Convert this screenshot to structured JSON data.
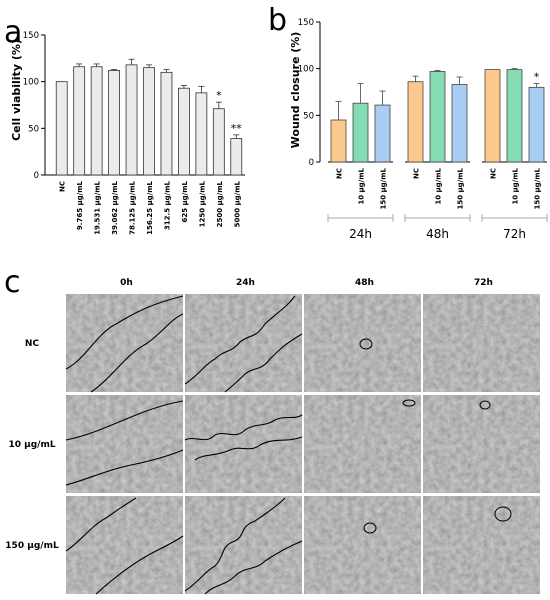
{
  "panels": {
    "a": "a",
    "b": "b",
    "c": "c"
  },
  "chart_data": [
    {
      "type": "bar",
      "panel": "a",
      "ylabel": "Cell viability (%)",
      "ylim": [
        0,
        150
      ],
      "yticks": [
        0,
        50,
        100,
        150
      ],
      "grid": false,
      "bar_color": "#ebebeb",
      "categories": [
        "NC",
        "9.765 μg/mL",
        "19.531 μg/mL",
        "39.062 μg/mL",
        "78.125 μg/mL",
        "156.25 μg/mL",
        "312.5 μg/mL",
        "625 μg/mL",
        "1250 μg/mL",
        "2500 μg/mL",
        "5000 μg/mL"
      ],
      "values": [
        100,
        116,
        116,
        112,
        118,
        115,
        110,
        93,
        88,
        71,
        39
      ],
      "errors": [
        0,
        3,
        3,
        1,
        6,
        3,
        3,
        3,
        7,
        7,
        4
      ],
      "annotations": [
        "",
        "",
        "",
        "",
        "",
        "",
        "",
        "",
        "",
        "*",
        "**"
      ]
    },
    {
      "type": "bar",
      "panel": "b",
      "ylabel": "Wound closure (%)",
      "ylim": [
        0,
        150
      ],
      "yticks": [
        0,
        50,
        100,
        150
      ],
      "grid": false,
      "groups": [
        "24h",
        "48h",
        "72h"
      ],
      "categories": [
        "NC",
        "10 μg/mL",
        "150 μg/mL"
      ],
      "colors": [
        "#fcc98c",
        "#85dcb4",
        "#a9cef4"
      ],
      "series": [
        {
          "group": "24h",
          "values": [
            45,
            63,
            61
          ],
          "errors": [
            20,
            21,
            15
          ],
          "annotations": [
            "",
            "",
            ""
          ]
        },
        {
          "group": "48h",
          "values": [
            86,
            97,
            83
          ],
          "errors": [
            6,
            1,
            8
          ],
          "annotations": [
            "",
            "",
            ""
          ]
        },
        {
          "group": "72h",
          "values": [
            99,
            99,
            80
          ],
          "errors": [
            0,
            1,
            4
          ],
          "annotations": [
            "",
            "",
            "*"
          ]
        }
      ]
    }
  ],
  "micrographs": {
    "columns": [
      "0h",
      "24h",
      "48h",
      "72h"
    ],
    "rows": [
      "NC",
      "10 μg/mL",
      "150 μg/mL"
    ]
  }
}
